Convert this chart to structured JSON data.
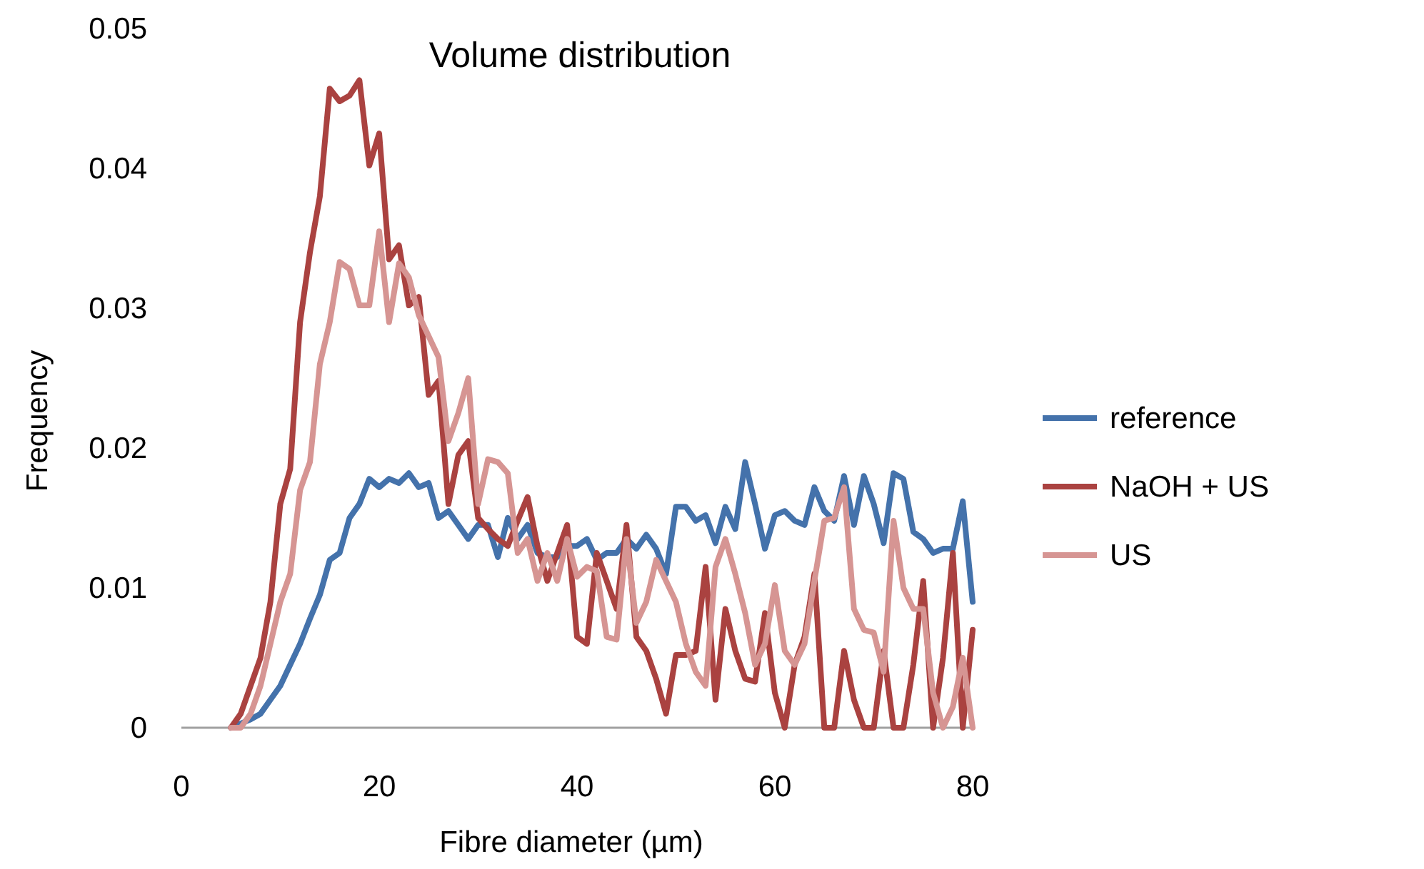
{
  "chart_data": {
    "type": "line",
    "title": "Volume distribution",
    "xlabel": "Fibre diameter (µm)",
    "ylabel": "Frequency",
    "x": [
      5,
      6,
      7,
      8,
      9,
      10,
      11,
      12,
      13,
      14,
      15,
      16,
      17,
      18,
      19,
      20,
      21,
      22,
      23,
      24,
      25,
      26,
      27,
      28,
      29,
      30,
      31,
      32,
      33,
      34,
      35,
      36,
      37,
      38,
      39,
      40,
      41,
      42,
      43,
      44,
      45,
      46,
      47,
      48,
      49,
      50,
      51,
      52,
      53,
      54,
      55,
      56,
      57,
      58,
      59,
      60,
      61,
      62,
      63,
      64,
      65,
      66,
      67,
      68,
      69,
      70,
      71,
      72,
      73,
      74,
      75,
      76,
      77,
      78,
      79,
      80
    ],
    "xlim": [
      0,
      80
    ],
    "xticks": [
      0,
      20,
      40,
      60,
      80
    ],
    "ylim": [
      0,
      0.05
    ],
    "yticks": [
      0,
      0.01,
      0.02,
      0.03,
      0.04,
      0.05
    ],
    "grid": false,
    "legend": "right",
    "marker": "none",
    "line_style": "solid",
    "series": [
      {
        "name": "reference",
        "color": "#4472ab",
        "values": [
          0,
          0.0003,
          0.0006,
          0.001,
          0.002,
          0.003,
          0.0045,
          0.006,
          0.0078,
          0.0095,
          0.012,
          0.0125,
          0.015,
          0.016,
          0.0178,
          0.0172,
          0.0178,
          0.0175,
          0.0182,
          0.0172,
          0.0175,
          0.015,
          0.0155,
          0.0145,
          0.0135,
          0.0145,
          0.0145,
          0.0122,
          0.015,
          0.0135,
          0.0145,
          0.0125,
          0.0122,
          0.0122,
          0.013,
          0.013,
          0.0135,
          0.012,
          0.0125,
          0.0125,
          0.0135,
          0.0128,
          0.0138,
          0.0128,
          0.011,
          0.0158,
          0.0158,
          0.0148,
          0.0152,
          0.0132,
          0.0158,
          0.0142,
          0.019,
          0.016,
          0.0128,
          0.0152,
          0.0155,
          0.0148,
          0.0145,
          0.0172,
          0.0155,
          0.0148,
          0.018,
          0.0145,
          0.018,
          0.016,
          0.0132,
          0.0182,
          0.0178,
          0.014,
          0.0135,
          0.0125,
          0.0128,
          0.0128,
          0.0162,
          0.009
        ]
      },
      {
        "name": "NaOH + US",
        "color": "#aa4240",
        "values": [
          0,
          0.001,
          0.003,
          0.005,
          0.009,
          0.016,
          0.0185,
          0.029,
          0.034,
          0.038,
          0.0457,
          0.0448,
          0.0452,
          0.0463,
          0.0402,
          0.0425,
          0.0335,
          0.0345,
          0.0302,
          0.0308,
          0.0238,
          0.0248,
          0.016,
          0.0195,
          0.0205,
          0.015,
          0.0142,
          0.0135,
          0.013,
          0.0148,
          0.0165,
          0.013,
          0.0105,
          0.0125,
          0.0145,
          0.0065,
          0.006,
          0.0125,
          0.0105,
          0.0085,
          0.0145,
          0.0065,
          0.0055,
          0.0035,
          0.001,
          0.0052,
          0.0052,
          0.0055,
          0.0115,
          0.002,
          0.0085,
          0.0055,
          0.0035,
          0.0033,
          0.0082,
          0.0025,
          0,
          0.0045,
          0.0065,
          0.011,
          0,
          0,
          0.0055,
          0.002,
          0,
          0,
          0.0055,
          0,
          0,
          0.0045,
          0.0105,
          0,
          0.005,
          0.0125,
          0,
          0.007
        ]
      },
      {
        "name": "US",
        "color": "#d69593",
        "values": [
          0,
          0,
          0.001,
          0.003,
          0.006,
          0.009,
          0.011,
          0.017,
          0.019,
          0.026,
          0.029,
          0.0333,
          0.0328,
          0.0302,
          0.0302,
          0.0355,
          0.029,
          0.0332,
          0.0322,
          0.0295,
          0.028,
          0.0265,
          0.0205,
          0.0225,
          0.025,
          0.016,
          0.0192,
          0.019,
          0.0182,
          0.0125,
          0.0135,
          0.0105,
          0.0125,
          0.0105,
          0.0135,
          0.0108,
          0.0115,
          0.0112,
          0.0065,
          0.0063,
          0.0135,
          0.0075,
          0.009,
          0.012,
          0.0105,
          0.009,
          0.006,
          0.004,
          0.003,
          0.0115,
          0.0135,
          0.011,
          0.0082,
          0.0045,
          0.006,
          0.0102,
          0.0055,
          0.0045,
          0.006,
          0.0105,
          0.0148,
          0.015,
          0.0172,
          0.0085,
          0.007,
          0.0068,
          0.004,
          0.0148,
          0.01,
          0.0085,
          0.0085,
          0.0025,
          0,
          0.0015,
          0.005,
          0
        ]
      }
    ]
  }
}
